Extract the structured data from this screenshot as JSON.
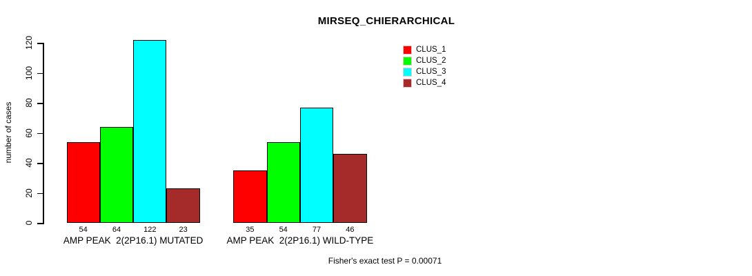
{
  "chart_data": {
    "type": "bar",
    "title": "MIRSEQ_CHIERARCHICAL",
    "ylabel": "number of cases",
    "xlabel": "",
    "ylim": [
      0,
      120
    ],
    "yticks": [
      0,
      20,
      40,
      60,
      80,
      100,
      120
    ],
    "grid": false,
    "legend_position": "top-right",
    "categories": [
      "AMP PEAK  2(2P16.1) MUTATED",
      "AMP PEAK  2(2P16.1) WILD-TYPE"
    ],
    "series": [
      {
        "name": "CLUS_1",
        "color": "#ff0000",
        "values": [
          54,
          35
        ]
      },
      {
        "name": "CLUS_2",
        "color": "#00ff00",
        "values": [
          64,
          54
        ]
      },
      {
        "name": "CLUS_3",
        "color": "#00ffff",
        "values": [
          122,
          77
        ]
      },
      {
        "name": "CLUS_4",
        "color": "#a52a2a",
        "values": [
          23,
          46
        ]
      }
    ],
    "bar_value_labels": [
      [
        "54",
        "64",
        "122",
        "23"
      ],
      [
        "35",
        "54",
        "77",
        "46"
      ]
    ],
    "footer": "Fisher's exact test P = 0.00071"
  }
}
